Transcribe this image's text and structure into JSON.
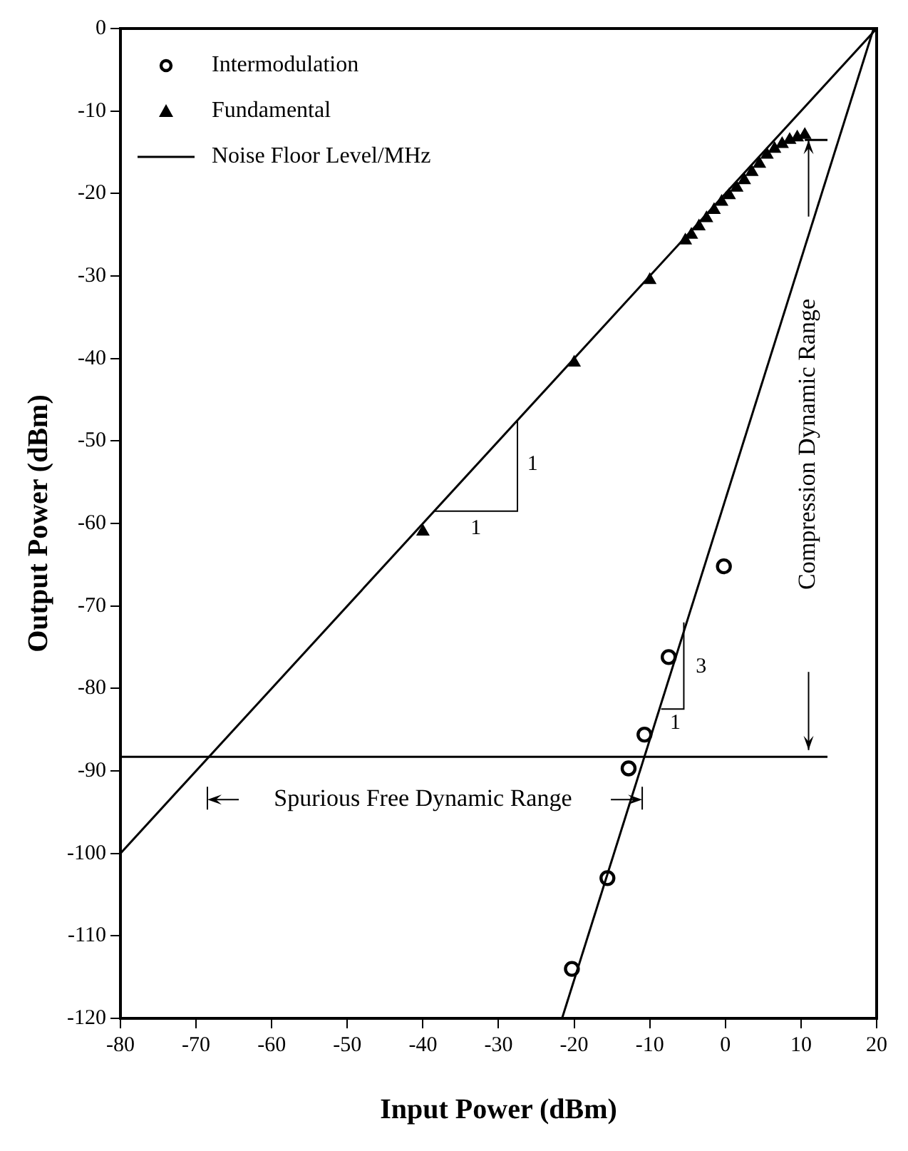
{
  "chart_data": {
    "type": "scatter",
    "xlabel": "Input Power (dBm)",
    "ylabel": "Output Power (dBm)",
    "xlim": [
      -80,
      20
    ],
    "ylim": [
      -120,
      0
    ],
    "xticks": [
      -80,
      -70,
      -60,
      -50,
      -40,
      -30,
      -20,
      -10,
      0,
      10,
      20
    ],
    "yticks": [
      -120,
      -110,
      -100,
      -90,
      -80,
      -70,
      -60,
      -50,
      -40,
      -30,
      -20,
      -10,
      0
    ],
    "grid": false,
    "legend": "top left",
    "series": [
      {
        "name": "Intermodulation",
        "marker": "circle",
        "color": "#000000",
        "x": [
          -20.3,
          -15.6,
          -12.8,
          -10.7,
          -7.5,
          -0.2
        ],
        "values": [
          -114,
          -103,
          -89.7,
          -85.6,
          -76.2,
          -65.2
        ]
      },
      {
        "name": "Fundamental",
        "marker": "triangle",
        "color": "#000000",
        "x": [
          -40,
          -20,
          -10,
          -5.3,
          -4.5,
          -3.5,
          -2.5,
          -1.5,
          -0.5,
          0.5,
          1.5,
          2.5,
          3.5,
          4.5,
          5.5,
          6.5,
          7.5,
          8.5,
          9.5,
          10.5
        ],
        "values": [
          -61,
          -40.5,
          -30.5,
          -25.7,
          -25,
          -24,
          -23,
          -22,
          -21,
          -20.2,
          -19.3,
          -18.4,
          -17.4,
          -16.4,
          -15.3,
          -14.6,
          -14,
          -13.5,
          -13.2,
          -12.9
        ]
      },
      {
        "name": "Noise Floor Level/MHz",
        "type": "line",
        "color": "#000000",
        "x": [
          -80,
          13.5
        ],
        "values": [
          -88.3,
          -88.3
        ]
      },
      {
        "type": "line",
        "color": "#000000",
        "x": [
          -80,
          20
        ],
        "values": [
          -100,
          0
        ]
      },
      {
        "type": "line",
        "color": "#000000",
        "x": [
          -21.6,
          19.6
        ],
        "values": [
          -120,
          0
        ]
      },
      {
        "type": "line",
        "color": "#000000",
        "x": [
          10.5,
          13.5
        ],
        "values": [
          -13.5,
          -13.5
        ]
      }
    ],
    "annotations": [
      "1",
      "1",
      "3",
      {
        "text": "1",
        "x": -8.5,
        "y": -81.8
      },
      "Spurious Free Dynamic Range",
      "Compression Dynamic Range"
    ]
  }
}
